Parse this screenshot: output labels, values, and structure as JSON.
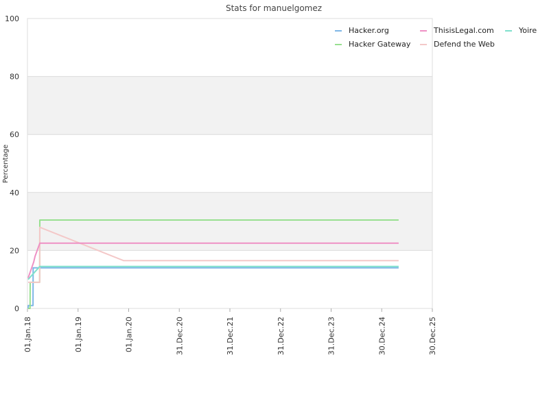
{
  "chart_data": {
    "type": "line",
    "title": "Stats for manuelgomez",
    "xlabel": "",
    "ylabel": "Percentage",
    "ylim": [
      0,
      100
    ],
    "xlim": [
      "2018-01-01",
      "2025-12-30"
    ],
    "y_ticks": [
      0,
      20,
      40,
      60,
      80,
      100
    ],
    "x_ticks": [
      {
        "label": "01.Jan.18",
        "date": "2018-01-01"
      },
      {
        "label": "01.Jan.19",
        "date": "2019-01-01"
      },
      {
        "label": "01.Jan.20",
        "date": "2020-01-01"
      },
      {
        "label": "31.Dec.20",
        "date": "2020-12-31"
      },
      {
        "label": "31.Dec.21",
        "date": "2021-12-31"
      },
      {
        "label": "31.Dec.22",
        "date": "2022-12-31"
      },
      {
        "label": "31.Dec.23",
        "date": "2023-12-31"
      },
      {
        "label": "30.Dec.24",
        "date": "2024-12-30"
      },
      {
        "label": "30.Dec.25",
        "date": "2025-12-30"
      }
    ],
    "grid": true,
    "legend": "top-right",
    "series": [
      {
        "name": "Hacker.org",
        "color": "#7eb6e6",
        "points": [
          {
            "x": "2018-01-06",
            "y": 0
          },
          {
            "x": "2018-01-07",
            "y": 1
          },
          {
            "x": "2018-02-10",
            "y": 1
          },
          {
            "x": "2018-02-11",
            "y": 14
          },
          {
            "x": "2018-04-01",
            "y": 14
          },
          {
            "x": "2025-05-01",
            "y": 14
          }
        ]
      },
      {
        "name": "Hacker Gateway",
        "color": "#98e090",
        "points": [
          {
            "x": "2018-01-06",
            "y": 0
          },
          {
            "x": "2018-01-20",
            "y": 0
          },
          {
            "x": "2018-01-21",
            "y": 9
          },
          {
            "x": "2018-03-30",
            "y": 9
          },
          {
            "x": "2018-03-31",
            "y": 30.5
          },
          {
            "x": "2025-05-01",
            "y": 30.5
          }
        ]
      },
      {
        "name": "ThisisLegal.com",
        "color": "#ee90c4",
        "points": [
          {
            "x": "2018-01-06",
            "y": 10.5
          },
          {
            "x": "2018-02-15",
            "y": 16
          },
          {
            "x": "2018-02-25",
            "y": 18
          },
          {
            "x": "2018-03-31",
            "y": 22.5
          },
          {
            "x": "2025-05-01",
            "y": 22.5
          }
        ]
      },
      {
        "name": "Defend the Web",
        "color": "#f4c8c8",
        "points": [
          {
            "x": "2018-01-06",
            "y": 9
          },
          {
            "x": "2018-03-30",
            "y": 9
          },
          {
            "x": "2018-03-31",
            "y": 28
          },
          {
            "x": "2019-11-25",
            "y": 16.5
          },
          {
            "x": "2025-05-01",
            "y": 16.5
          }
        ]
      },
      {
        "name": "Yoire",
        "color": "#7ee0cc",
        "points": [
          {
            "x": "2018-01-06",
            "y": 10
          },
          {
            "x": "2018-03-31",
            "y": 14.5
          },
          {
            "x": "2025-05-01",
            "y": 14.5
          }
        ]
      }
    ]
  }
}
